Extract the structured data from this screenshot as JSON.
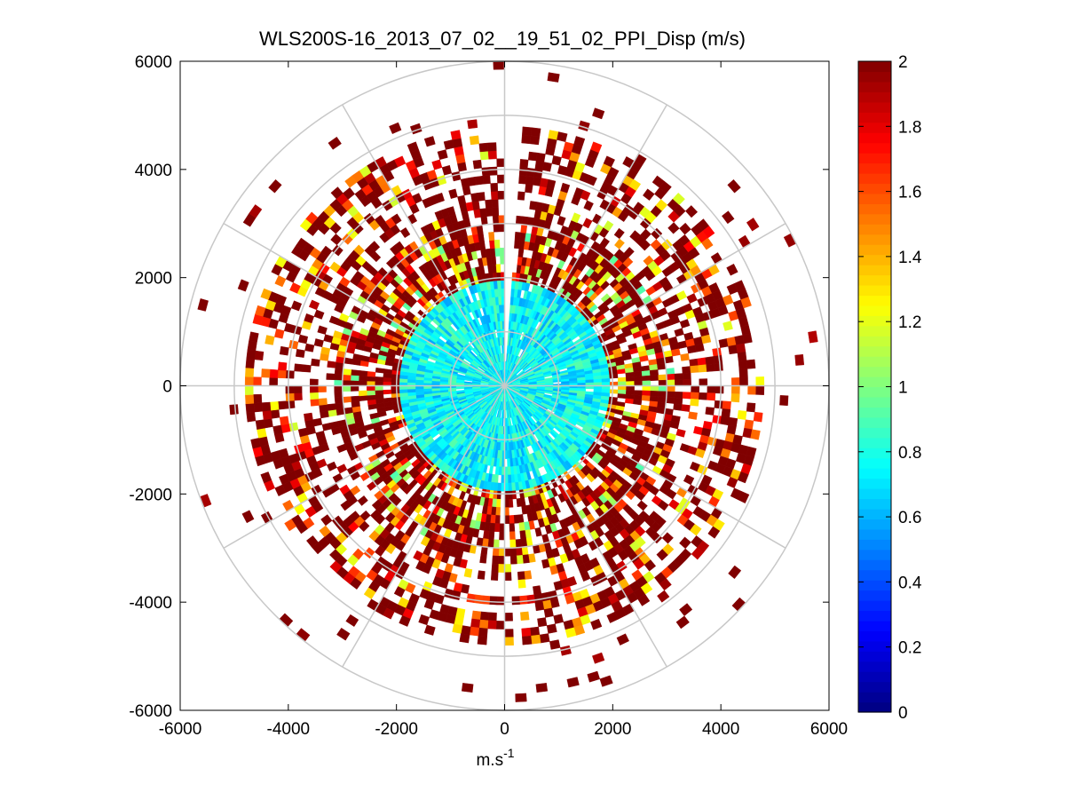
{
  "chart_data": {
    "type": "heatmap",
    "subtype": "polar-ppi",
    "title": "WLS200S-16_2013_07_02__19_51_02_PPI_Disp (m/s)",
    "xlabel": "m.s",
    "xlabel_superscript": "-1",
    "ylabel": "",
    "xlim": [
      -6000,
      6000
    ],
    "ylim": [
      -6000,
      6000
    ],
    "x_ticks": [
      "-6000",
      "-4000",
      "-2000",
      "0",
      "2000",
      "4000",
      "6000"
    ],
    "y_ticks": [
      "6000",
      "4000",
      "2000",
      "0",
      "-2000",
      "-4000",
      "-6000"
    ],
    "x_tick_values": [
      -6000,
      -4000,
      -2000,
      0,
      2000,
      4000,
      6000
    ],
    "y_tick_values": [
      6000,
      4000,
      2000,
      0,
      -2000,
      -4000,
      -6000
    ],
    "polar_grid": {
      "range_rings_m": [
        1000,
        2000,
        3000,
        4000,
        5000,
        6000
      ],
      "spokes_deg": [
        0,
        30,
        60,
        90,
        120,
        150,
        180,
        210,
        240,
        270,
        300,
        330
      ]
    },
    "colorbar": {
      "colormap": "jet",
      "min": 0,
      "max": 2,
      "ticks": [
        "0",
        "0.2",
        "0.4",
        "0.6",
        "0.8",
        "1",
        "1.2",
        "1.4",
        "1.6",
        "1.8",
        "2"
      ],
      "tick_values": [
        0,
        0.2,
        0.4,
        0.6,
        0.8,
        1.0,
        1.2,
        1.4,
        1.6,
        1.8,
        2.0
      ]
    },
    "data_summary": {
      "gates_m": {
        "start": 150,
        "end": 6000,
        "step": 150
      },
      "azimuth_step_deg": 2,
      "blind_sector_deg": [
        0,
        4
      ],
      "zones": [
        {
          "range_m": [
            0,
            1900
          ],
          "typical_value": 0.75,
          "spread": 0.18,
          "coverage": 0.97
        },
        {
          "range_m": [
            1900,
            3050
          ],
          "typical_value": 1.6,
          "spread": 0.7,
          "coverage": 0.78
        },
        {
          "range_m": [
            3050,
            4700
          ],
          "typical_value": 1.75,
          "spread": 0.6,
          "coverage": 0.5
        },
        {
          "range_m": [
            4700,
            6000
          ],
          "typical_value": 2.0,
          "spread": 0.1,
          "coverage": 0.035
        }
      ]
    }
  }
}
